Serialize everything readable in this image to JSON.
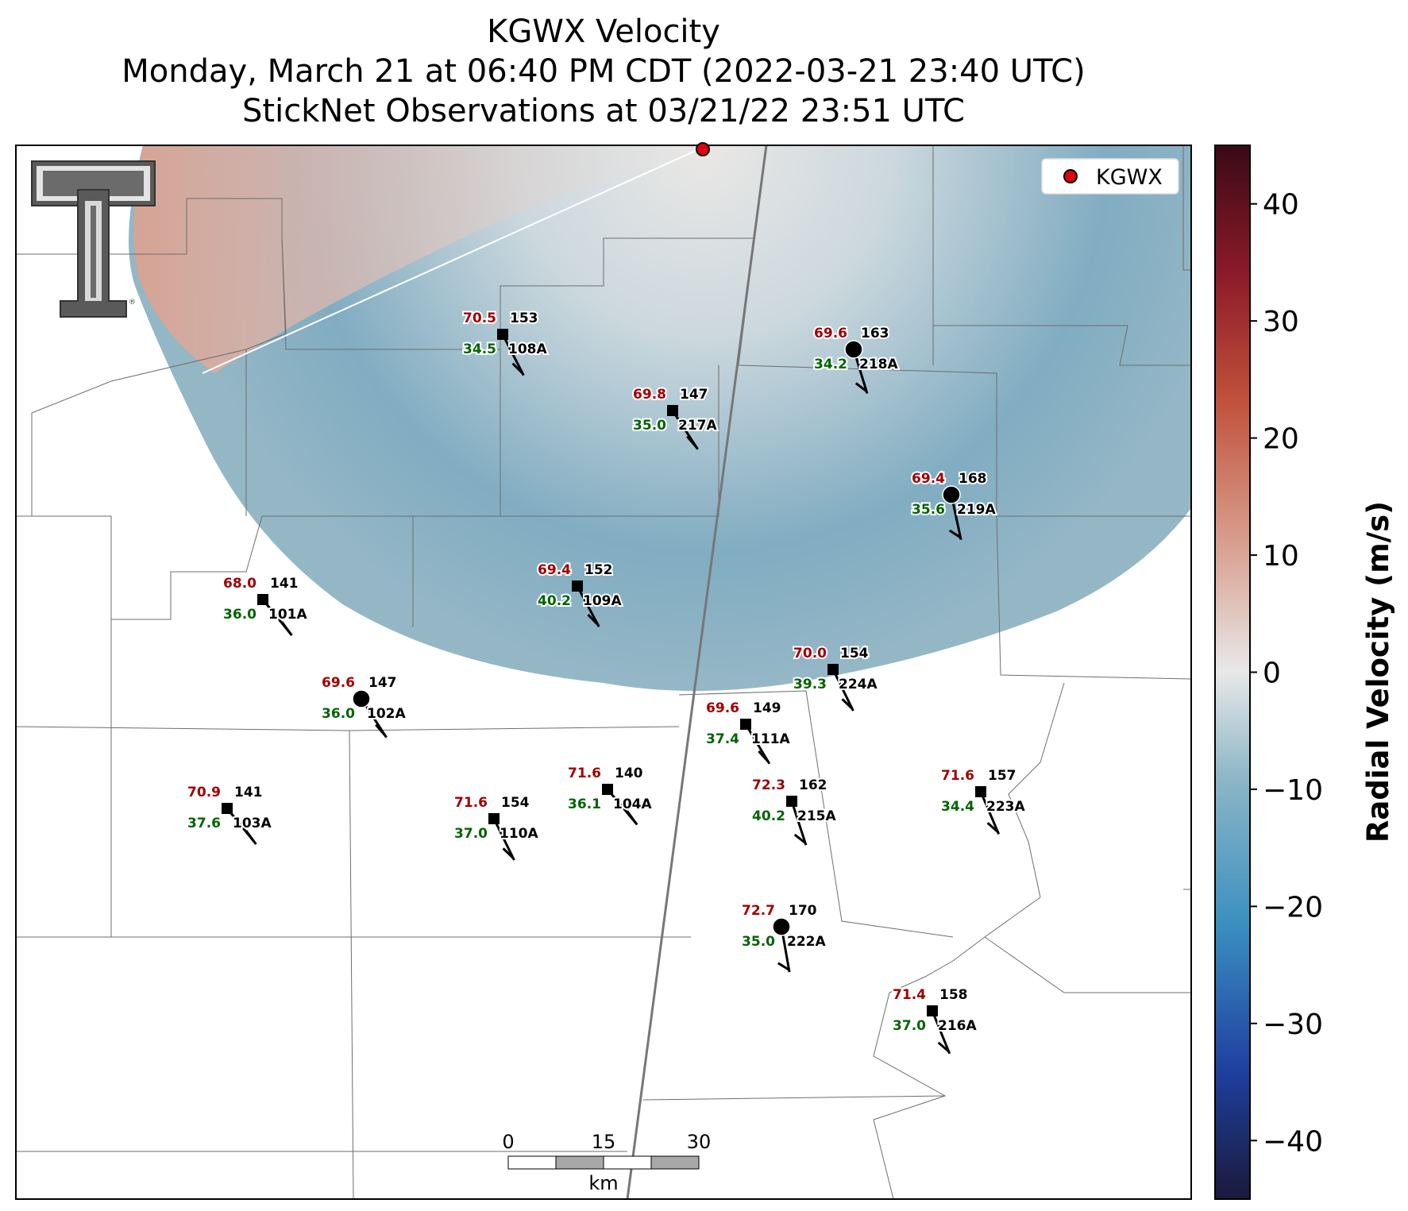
{
  "title": {
    "line1": "KGWX Velocity",
    "line2": "Monday, March 21 at 06:40 PM CDT (2022-03-21 23:40 UTC)",
    "line3": "StickNet Observations at 03/21/22 23:51 UTC"
  },
  "legend": {
    "label": "KGWX",
    "marker_color": "#e0000f"
  },
  "colorbar": {
    "label": "Radial Velocity (m/s)",
    "range": [
      -45,
      45
    ],
    "ticks": [
      40,
      30,
      20,
      10,
      0,
      -10,
      -20,
      -30,
      -40
    ],
    "tick_labels": [
      "40",
      "30",
      "20",
      "10",
      "0",
      "−10",
      "−20",
      "−30",
      "−40"
    ],
    "colors": [
      "#1a1a3a",
      "#1f3f9f",
      "#3a8fc0",
      "#8db6c6",
      "#e8e8e8",
      "#d9a090",
      "#c0503a",
      "#8b1a2a",
      "#3a0a14"
    ]
  },
  "scale_bar": {
    "labels": [
      "0",
      "15",
      "30"
    ],
    "unit": "km"
  },
  "station_colors": {
    "temperature": "#a00000",
    "dewpoint": "#006400",
    "label": "#000000"
  },
  "stations": [
    {
      "id": "108A",
      "temp": "70.5",
      "dew": "34.5",
      "dir": "153"
    },
    {
      "id": "218A",
      "temp": "69.6",
      "dew": "34.2",
      "dir": "163"
    },
    {
      "id": "217A",
      "temp": "69.8",
      "dew": "35.0",
      "dir": "147"
    },
    {
      "id": "219A",
      "temp": "69.4",
      "dew": "35.6",
      "dir": "168"
    },
    {
      "id": "101A",
      "temp": "68.0",
      "dew": "36.0",
      "dir": "141"
    },
    {
      "id": "109A",
      "temp": "69.4",
      "dew": "40.2",
      "dir": "152"
    },
    {
      "id": "224A",
      "temp": "70.0",
      "dew": "39.3",
      "dir": "154"
    },
    {
      "id": "102A",
      "temp": "69.6",
      "dew": "36.0",
      "dir": "147"
    },
    {
      "id": "111A",
      "temp": "69.6",
      "dew": "37.4",
      "dir": "149"
    },
    {
      "id": "103A",
      "temp": "70.9",
      "dew": "37.6",
      "dir": "141"
    },
    {
      "id": "104A",
      "temp": "71.6",
      "dew": "36.1",
      "dir": "140"
    },
    {
      "id": "110A",
      "temp": "71.6",
      "dew": "37.0",
      "dir": "154"
    },
    {
      "id": "215A",
      "temp": "72.3",
      "dew": "40.2",
      "dir": "162"
    },
    {
      "id": "223A",
      "temp": "71.6",
      "dew": "34.4",
      "dir": "157"
    },
    {
      "id": "222A",
      "temp": "72.7",
      "dew": "35.0",
      "dir": "170"
    },
    {
      "id": "216A",
      "temp": "71.4",
      "dew": "37.0",
      "dir": "158"
    }
  ]
}
